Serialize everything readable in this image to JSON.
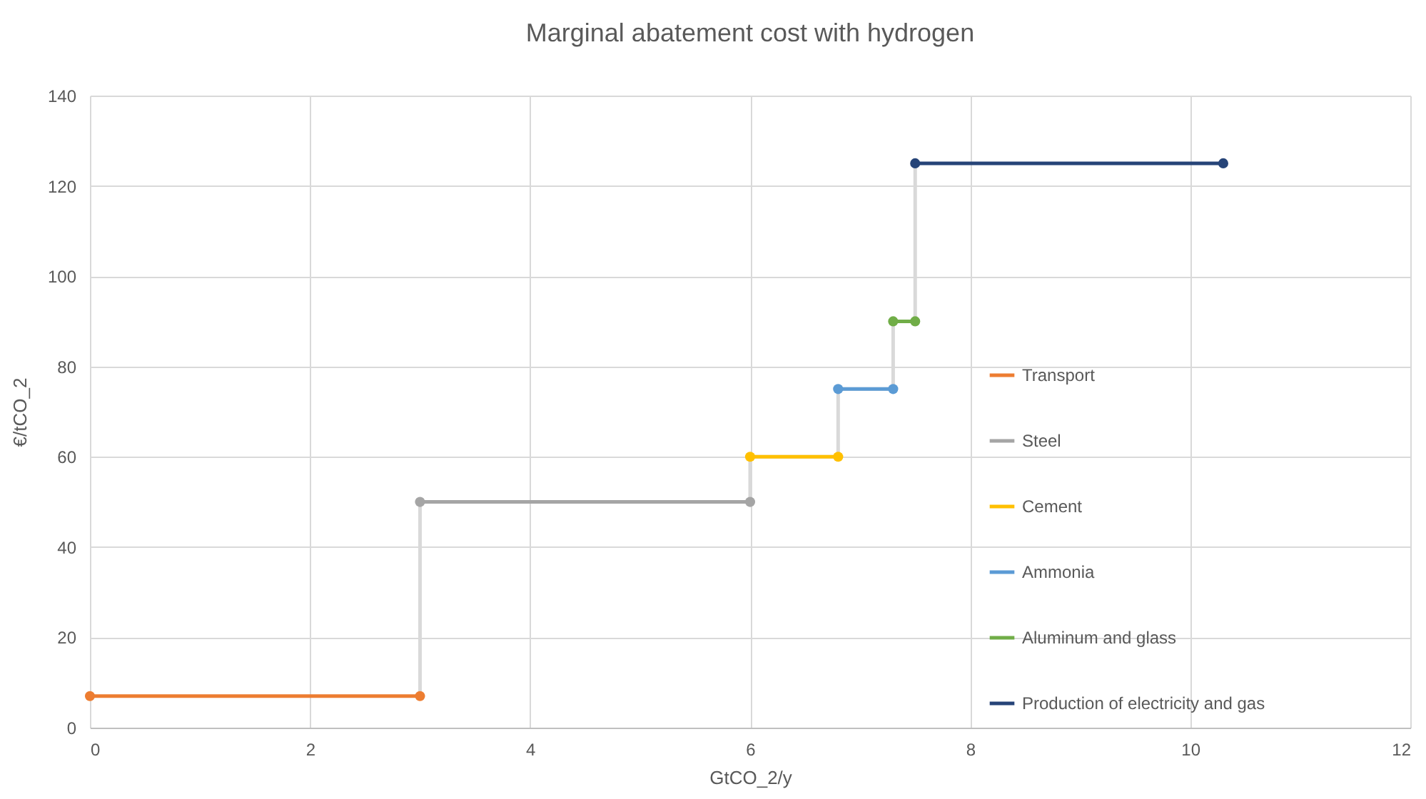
{
  "chart_data": {
    "type": "line",
    "title": "Marginal abatement cost with hydrogen",
    "xlabel": "GtCO_2/y",
    "ylabel": "€/tCO_2",
    "xlim": [
      0,
      12
    ],
    "xticks": [
      0,
      2,
      4,
      6,
      8,
      10,
      12
    ],
    "ylim": [
      0,
      140
    ],
    "yticks": [
      0,
      20,
      40,
      60,
      80,
      100,
      120,
      140
    ],
    "grid": true,
    "legend": "right",
    "marker": "circle",
    "line_style": "solid",
    "series": [
      {
        "x": [
          3,
          3,
          null,
          6,
          6,
          null,
          6.8,
          6.8,
          null,
          7.3,
          7.3,
          null,
          7.5,
          7.5
        ],
        "values": [
          7,
          50,
          null,
          50,
          60,
          null,
          60,
          75,
          null,
          75,
          90,
          null,
          90,
          125
        ],
        "color": "#d9d9d9",
        "marker": "none"
      },
      {
        "name": "Transport",
        "color": "#ed7d31",
        "x": [
          0,
          3
        ],
        "values": [
          7,
          7
        ]
      },
      {
        "name": "Steel",
        "color": "#a5a5a5",
        "x": [
          3,
          6
        ],
        "values": [
          50,
          50
        ]
      },
      {
        "name": "Cement",
        "color": "#ffc000",
        "x": [
          6,
          6.8
        ],
        "values": [
          60,
          60
        ]
      },
      {
        "name": "Ammonia",
        "color": "#5b9bd5",
        "x": [
          6.8,
          7.3
        ],
        "values": [
          75,
          75
        ]
      },
      {
        "name": "Aluminum and glass",
        "color": "#70ad47",
        "x": [
          7.3,
          7.5
        ],
        "values": [
          90,
          90
        ]
      },
      {
        "name": "Production of electricity and gas",
        "color": "#264478",
        "x": [
          7.5,
          10.3
        ],
        "values": [
          125,
          125
        ]
      }
    ]
  }
}
